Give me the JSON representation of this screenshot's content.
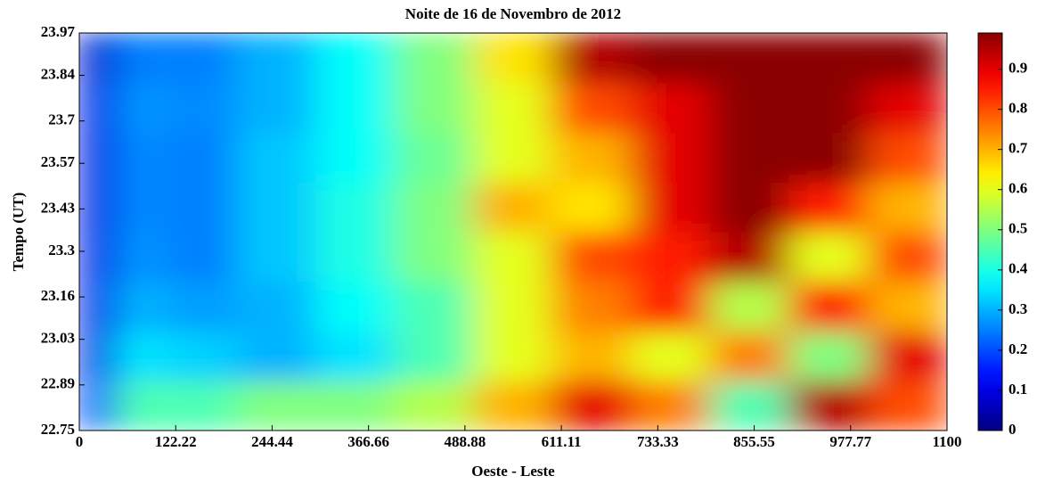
{
  "chart_data": {
    "type": "heatmap",
    "title": "Noite de 16 de Novembro de 2012",
    "xlabel": "Oeste - Leste",
    "ylabel": "Tempo (UT)",
    "x": [
      15,
      75,
      150,
      250,
      350,
      450,
      550,
      650,
      750,
      850,
      950,
      1050
    ],
    "y": [
      22.826,
      22.979,
      23.131,
      23.284,
      23.436,
      23.589,
      23.741,
      23.894
    ],
    "z": [
      [
        0.2,
        0.45,
        0.45,
        0.5,
        0.5,
        0.55,
        0.7,
        0.9,
        0.75,
        0.45,
        0.95,
        0.8
      ],
      [
        0.1,
        0.35,
        0.33,
        0.3,
        0.35,
        0.45,
        0.6,
        0.7,
        0.6,
        0.75,
        0.5,
        0.9
      ],
      [
        0.1,
        0.3,
        0.28,
        0.3,
        0.38,
        0.45,
        0.6,
        0.75,
        0.85,
        0.55,
        0.85,
        0.7
      ],
      [
        0.1,
        0.27,
        0.25,
        0.32,
        0.4,
        0.5,
        0.6,
        0.8,
        0.85,
        0.95,
        0.6,
        0.8
      ],
      [
        0.1,
        0.26,
        0.25,
        0.32,
        0.4,
        0.5,
        0.7,
        0.65,
        0.9,
        0.99,
        0.85,
        0.7
      ],
      [
        0.1,
        0.26,
        0.25,
        0.32,
        0.38,
        0.48,
        0.6,
        0.7,
        0.9,
        0.99,
        0.99,
        0.8
      ],
      [
        0.1,
        0.27,
        0.26,
        0.3,
        0.38,
        0.5,
        0.6,
        0.8,
        0.9,
        0.99,
        0.99,
        0.9
      ],
      [
        0.08,
        0.25,
        0.25,
        0.3,
        0.38,
        0.5,
        0.65,
        0.95,
        0.99,
        0.99,
        0.99,
        0.99
      ]
    ],
    "xlim": [
      0,
      1100
    ],
    "xticks": [
      0,
      122.22,
      244.44,
      366.66,
      488.88,
      611.11,
      733.33,
      855.55,
      977.77,
      1100
    ],
    "ylim": [
      22.75,
      23.97
    ],
    "yticks": [
      22.75,
      22.89,
      23.03,
      23.16,
      23.3,
      23.43,
      23.57,
      23.7,
      23.84,
      23.97
    ],
    "colormap": "jet",
    "clim": [
      0,
      0.99
    ],
    "cticks": [
      0,
      0.1,
      0.2,
      0.3,
      0.4,
      0.5,
      0.6,
      0.7,
      0.8,
      0.9
    ]
  }
}
